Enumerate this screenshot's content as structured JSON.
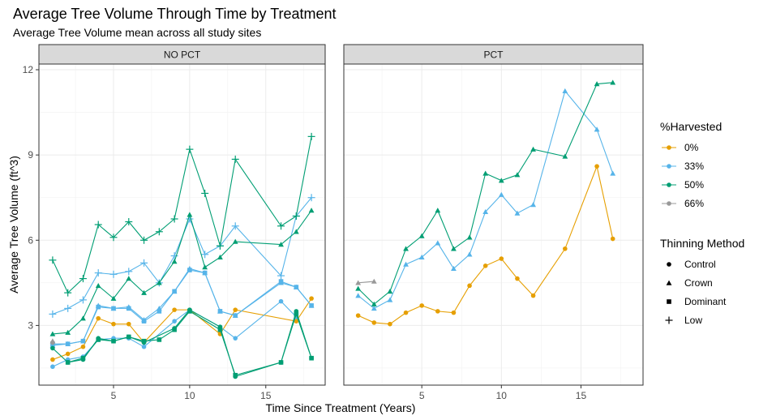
{
  "chart_data": {
    "type": "line",
    "title": "Average Tree Volume Through Time by Treatment",
    "subtitle": "Average Tree Volume mean across all study sites",
    "xlabel": "Time Since Treatment (Years)",
    "ylabel": "Average Tree Volume (ft^3)",
    "xlim": [
      0.1,
      18.9
    ],
    "ylim": [
      0.9,
      12.2
    ],
    "xticks": [
      5,
      10,
      15
    ],
    "xtick_labels": [
      "5",
      "10",
      "15"
    ],
    "yticks": [
      3,
      6,
      9,
      12
    ],
    "ytick_labels": [
      "3",
      "6",
      "9",
      "12"
    ],
    "colors": {
      "0%": "#E69F00",
      "33%": "#56B4E9",
      "50%": "#009E73",
      "66%": "#999999"
    },
    "panels": [
      {
        "name": "NO PCT",
        "series": [
          {
            "harvest": "0%",
            "method": "Control",
            "x": [
              1,
              2,
              3,
              4,
              5,
              6,
              7,
              9,
              10,
              12,
              13,
              17,
              18
            ],
            "y": [
              1.8,
              2.0,
              2.25,
              3.25,
              3.05,
              3.05,
              2.4,
              3.55,
              3.55,
              2.7,
              3.55,
              3.15,
              3.95
            ]
          },
          {
            "harvest": "33%",
            "method": "Control",
            "x": [
              1,
              2,
              3,
              4,
              5,
              6,
              7,
              9,
              10,
              12,
              13,
              16,
              17
            ],
            "y": [
              1.55,
              1.8,
              1.9,
              2.5,
              2.55,
              2.55,
              2.25,
              3.15,
              3.55,
              2.95,
              2.55,
              3.85,
              3.3
            ]
          },
          {
            "harvest": "33%",
            "method": "Crown",
            "x": [
              1,
              2,
              3,
              4,
              5,
              6,
              7,
              8,
              9,
              10,
              11,
              12,
              13,
              16,
              17,
              18
            ],
            "y": [
              2.3,
              2.35,
              2.45,
              3.7,
              3.6,
              3.65,
              3.2,
              3.6,
              4.2,
              5.0,
              4.85,
              3.5,
              3.35,
              4.5,
              4.35,
              3.7
            ]
          },
          {
            "harvest": "33%",
            "method": "Dominant",
            "x": [
              1,
              2,
              3,
              4,
              5,
              6,
              7,
              8,
              9,
              10,
              11,
              12,
              13,
              16,
              17,
              18
            ],
            "y": [
              2.35,
              2.35,
              2.45,
              3.65,
              3.6,
              3.6,
              3.15,
              3.5,
              4.2,
              4.95,
              4.85,
              3.5,
              3.35,
              4.55,
              4.35,
              3.7
            ]
          },
          {
            "harvest": "33%",
            "method": "Low",
            "x": [
              1,
              2,
              3,
              4,
              5,
              6,
              7,
              8,
              9,
              10,
              11,
              12,
              13,
              16,
              17,
              18
            ],
            "y": [
              3.4,
              3.6,
              3.9,
              4.85,
              4.8,
              4.9,
              5.2,
              4.5,
              5.45,
              6.75,
              5.5,
              5.8,
              6.5,
              4.75,
              6.85,
              7.5
            ]
          },
          {
            "harvest": "50%",
            "method": "Control",
            "x": [
              1,
              2,
              3,
              4,
              5,
              6,
              7,
              9,
              10,
              12,
              13,
              16,
              17,
              18
            ],
            "y": [
              2.2,
              1.7,
              1.8,
              2.55,
              2.45,
              2.6,
              2.4,
              2.9,
              3.55,
              2.95,
              1.2,
              1.7,
              3.5,
              1.85
            ]
          },
          {
            "harvest": "50%",
            "method": "Crown",
            "x": [
              1,
              2,
              3,
              4,
              5,
              6,
              7,
              8,
              9,
              10,
              11,
              12,
              13,
              16,
              17,
              18
            ],
            "y": [
              2.7,
              2.75,
              3.25,
              4.4,
              3.95,
              4.65,
              4.15,
              4.5,
              5.25,
              6.9,
              5.05,
              5.4,
              5.95,
              5.85,
              6.3,
              7.05
            ]
          },
          {
            "harvest": "50%",
            "method": "Dominant",
            "x": [
              2,
              3,
              4,
              5,
              6,
              7,
              8,
              9,
              10,
              12,
              13,
              16,
              17,
              18
            ],
            "y": [
              1.7,
              1.85,
              2.5,
              2.45,
              2.6,
              2.45,
              2.5,
              2.85,
              3.5,
              2.85,
              1.25,
              1.7,
              3.4,
              1.85
            ]
          },
          {
            "harvest": "50%",
            "method": "Low",
            "x": [
              1,
              2,
              3,
              4,
              5,
              6,
              7,
              8,
              9,
              10,
              11,
              12,
              13,
              16,
              17,
              18
            ],
            "y": [
              5.3,
              4.15,
              4.65,
              6.55,
              6.1,
              6.65,
              6.0,
              6.3,
              6.75,
              9.2,
              7.65,
              5.8,
              8.85,
              6.5,
              6.85,
              9.65
            ]
          },
          {
            "harvest": "66%",
            "method": "Control",
            "x": [
              1
            ],
            "y": [
              2.4
            ]
          },
          {
            "harvest": "66%",
            "method": "Crown",
            "x": [
              1
            ],
            "y": [
              2.45
            ]
          }
        ]
      },
      {
        "name": "PCT",
        "series": [
          {
            "harvest": "0%",
            "method": "Control",
            "x": [
              1,
              2,
              3,
              4,
              5,
              6,
              7,
              8,
              9,
              10,
              11,
              12,
              14,
              16,
              17
            ],
            "y": [
              3.35,
              3.1,
              3.05,
              3.45,
              3.7,
              3.5,
              3.45,
              4.4,
              5.1,
              5.35,
              4.65,
              4.05,
              5.7,
              8.6,
              6.05
            ]
          },
          {
            "harvest": "33%",
            "method": "Crown",
            "x": [
              1,
              2,
              3,
              4,
              5,
              6,
              7,
              8,
              9,
              10,
              11,
              12,
              14,
              16,
              17
            ],
            "y": [
              4.05,
              3.6,
              3.9,
              5.15,
              5.4,
              5.9,
              5.0,
              5.5,
              7.0,
              7.6,
              6.95,
              7.25,
              11.25,
              9.9,
              8.35
            ]
          },
          {
            "harvest": "50%",
            "method": "Crown",
            "x": [
              1,
              2,
              3,
              4,
              5,
              6,
              7,
              8,
              9,
              10,
              11,
              12,
              14,
              16,
              17
            ],
            "y": [
              4.3,
              3.75,
              4.2,
              5.7,
              6.15,
              7.05,
              5.7,
              6.1,
              8.35,
              8.1,
              8.3,
              9.2,
              8.95,
              11.5,
              11.55
            ]
          },
          {
            "harvest": "66%",
            "method": "Crown",
            "x": [
              1,
              2
            ],
            "y": [
              4.5,
              4.55
            ]
          }
        ]
      }
    ],
    "legends": {
      "harvest_title": "%Harvested",
      "harvest": [
        "0%",
        "33%",
        "50%",
        "66%"
      ],
      "method_title": "Thinning Method",
      "method": [
        "Control",
        "Crown",
        "Dominant",
        "Low"
      ]
    }
  }
}
